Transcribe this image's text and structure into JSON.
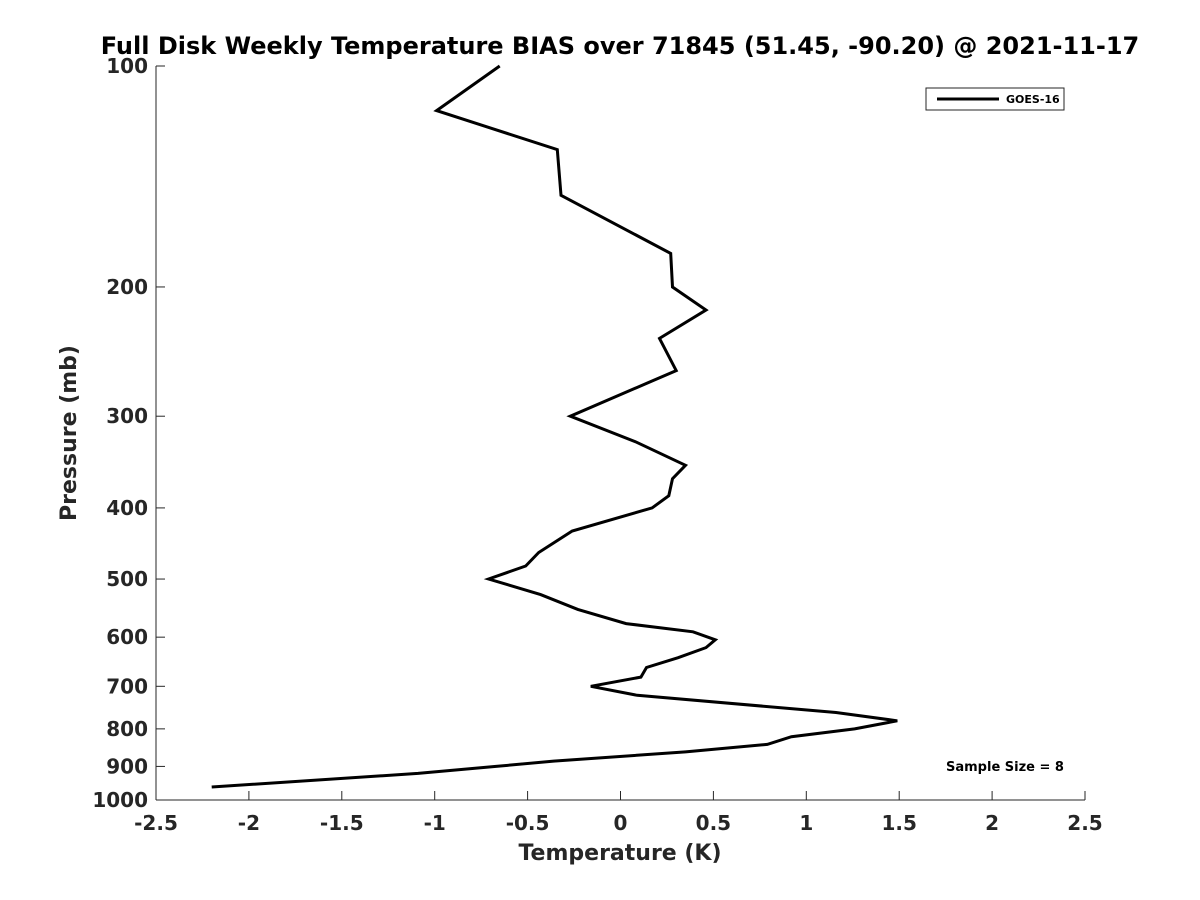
{
  "chart_data": {
    "type": "line",
    "title": "Full Disk Weekly Temperature BIAS over 71845 (51.45, -90.20) @ 2021-11-17",
    "xlabel": "Temperature (K)",
    "ylabel": "Pressure (mb)",
    "xlim": [
      -2.5,
      2.5
    ],
    "ylim": [
      100,
      1000
    ],
    "y_scale": "log",
    "y_reversed": true,
    "x_ticks": [
      "-2.5",
      "-2",
      "-1.5",
      "-1",
      "-0.5",
      "0",
      "0.5",
      "1",
      "1.5",
      "2",
      "2.5"
    ],
    "y_ticks": [
      "100",
      "200",
      "300",
      "400",
      "500",
      "600",
      "700",
      "800",
      "900",
      "1000"
    ],
    "legend_position": "top-right",
    "grid": false,
    "series": [
      {
        "name": "GOES-16",
        "color": "#000000",
        "points": [
          {
            "x": -0.65,
            "p": 100
          },
          {
            "x": -0.99,
            "p": 115
          },
          {
            "x": -0.34,
            "p": 130
          },
          {
            "x": -0.32,
            "p": 150
          },
          {
            "x": 0.27,
            "p": 180
          },
          {
            "x": 0.28,
            "p": 200
          },
          {
            "x": 0.46,
            "p": 215
          },
          {
            "x": 0.21,
            "p": 235
          },
          {
            "x": 0.3,
            "p": 260
          },
          {
            "x": -0.27,
            "p": 300
          },
          {
            "x": 0.08,
            "p": 325
          },
          {
            "x": 0.35,
            "p": 350
          },
          {
            "x": 0.28,
            "p": 365
          },
          {
            "x": 0.26,
            "p": 385
          },
          {
            "x": 0.17,
            "p": 400
          },
          {
            "x": -0.26,
            "p": 430
          },
          {
            "x": -0.44,
            "p": 460
          },
          {
            "x": -0.51,
            "p": 480
          },
          {
            "x": -0.71,
            "p": 500
          },
          {
            "x": -0.43,
            "p": 525
          },
          {
            "x": -0.23,
            "p": 550
          },
          {
            "x": 0.03,
            "p": 575
          },
          {
            "x": 0.39,
            "p": 590
          },
          {
            "x": 0.51,
            "p": 605
          },
          {
            "x": 0.46,
            "p": 620
          },
          {
            "x": 0.31,
            "p": 640
          },
          {
            "x": 0.14,
            "p": 660
          },
          {
            "x": 0.11,
            "p": 680
          },
          {
            "x": -0.16,
            "p": 700
          },
          {
            "x": 0.09,
            "p": 720
          },
          {
            "x": 1.16,
            "p": 760
          },
          {
            "x": 1.49,
            "p": 780
          },
          {
            "x": 1.26,
            "p": 800
          },
          {
            "x": 0.92,
            "p": 820
          },
          {
            "x": 0.79,
            "p": 840
          },
          {
            "x": 0.35,
            "p": 860
          },
          {
            "x": -0.36,
            "p": 885
          },
          {
            "x": -0.67,
            "p": 900
          },
          {
            "x": -1.09,
            "p": 920
          },
          {
            "x": -2.2,
            "p": 960
          }
        ]
      }
    ],
    "annotation": "Sample Size = 8"
  }
}
